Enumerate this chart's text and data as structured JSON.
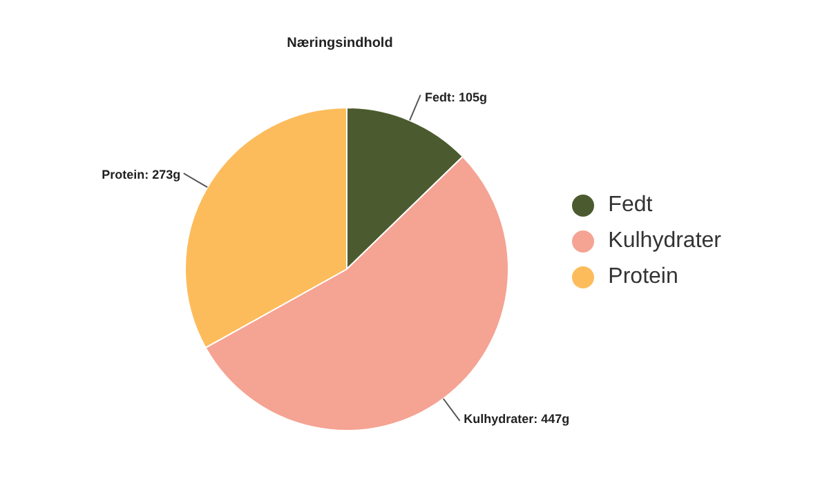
{
  "chart_data": {
    "type": "pie",
    "title": "Næringsindhold",
    "categories": [
      "Fedt",
      "Kulhydrater",
      "Protein"
    ],
    "values": [
      105,
      447,
      273
    ],
    "colors": [
      "#4b5b2f",
      "#f5a393",
      "#fdbc5b"
    ],
    "value_labels": [
      "Fedt: 105g",
      "Kulhydrater: 447g",
      "Protein: 273g"
    ],
    "legend": "right"
  }
}
